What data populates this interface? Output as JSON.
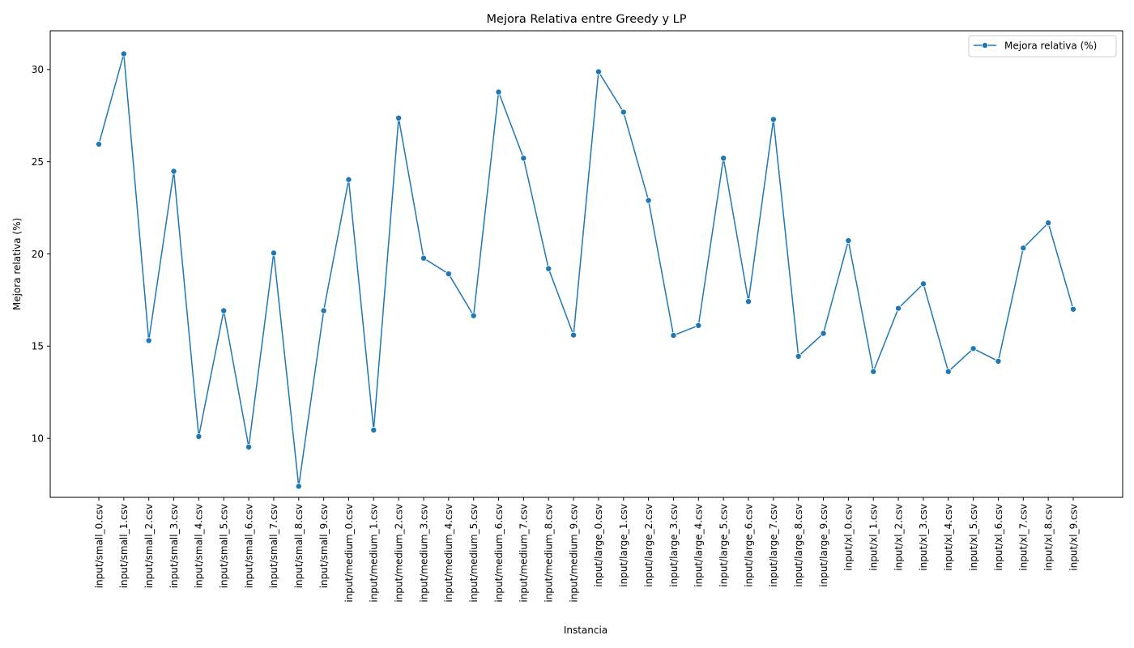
{
  "chart_data": {
    "type": "line",
    "title": "Mejora Relativa entre Greedy y LP",
    "xlabel": "Instancia",
    "ylabel": "Mejora relativa (%)",
    "ylim": [
      6.8,
      32.1
    ],
    "yticks": [
      10,
      15,
      20,
      25,
      30
    ],
    "grid": false,
    "legend_position": "top-right",
    "color": "#1f77b4",
    "categories": [
      "input/small_0.csv",
      "input/small_1.csv",
      "input/small_2.csv",
      "input/small_3.csv",
      "input/small_4.csv",
      "input/small_5.csv",
      "input/small_6.csv",
      "input/small_7.csv",
      "input/small_8.csv",
      "input/small_9.csv",
      "input/medium_0.csv",
      "input/medium_1.csv",
      "input/medium_2.csv",
      "input/medium_3.csv",
      "input/medium_4.csv",
      "input/medium_5.csv",
      "input/medium_6.csv",
      "input/medium_7.csv",
      "input/medium_8.csv",
      "input/medium_9.csv",
      "input/large_0.csv",
      "input/large_1.csv",
      "input/large_2.csv",
      "input/large_3.csv",
      "input/large_4.csv",
      "input/large_5.csv",
      "input/large_6.csv",
      "input/large_7.csv",
      "input/large_8.csv",
      "input/large_9.csv",
      "input/xl_0.csv",
      "input/xl_1.csv",
      "input/xl_2.csv",
      "input/xl_3.csv",
      "input/xl_4.csv",
      "input/xl_5.csv",
      "input/xl_6.csv",
      "input/xl_7.csv",
      "input/xl_8.csv",
      "input/xl_9.csv"
    ],
    "series": [
      {
        "name": "Mejora relativa (%)",
        "values": [
          25.95,
          30.85,
          15.3,
          24.48,
          10.1,
          16.92,
          9.53,
          20.05,
          7.4,
          16.92,
          24.03,
          10.45,
          27.37,
          19.77,
          18.92,
          16.65,
          28.78,
          25.19,
          19.2,
          15.6,
          29.88,
          27.69,
          22.9,
          15.58,
          16.12,
          25.19,
          17.42,
          27.29,
          14.45,
          15.69,
          20.72,
          13.62,
          17.05,
          18.38,
          13.62,
          14.87,
          14.18,
          20.32,
          21.68,
          17.0
        ]
      }
    ]
  }
}
